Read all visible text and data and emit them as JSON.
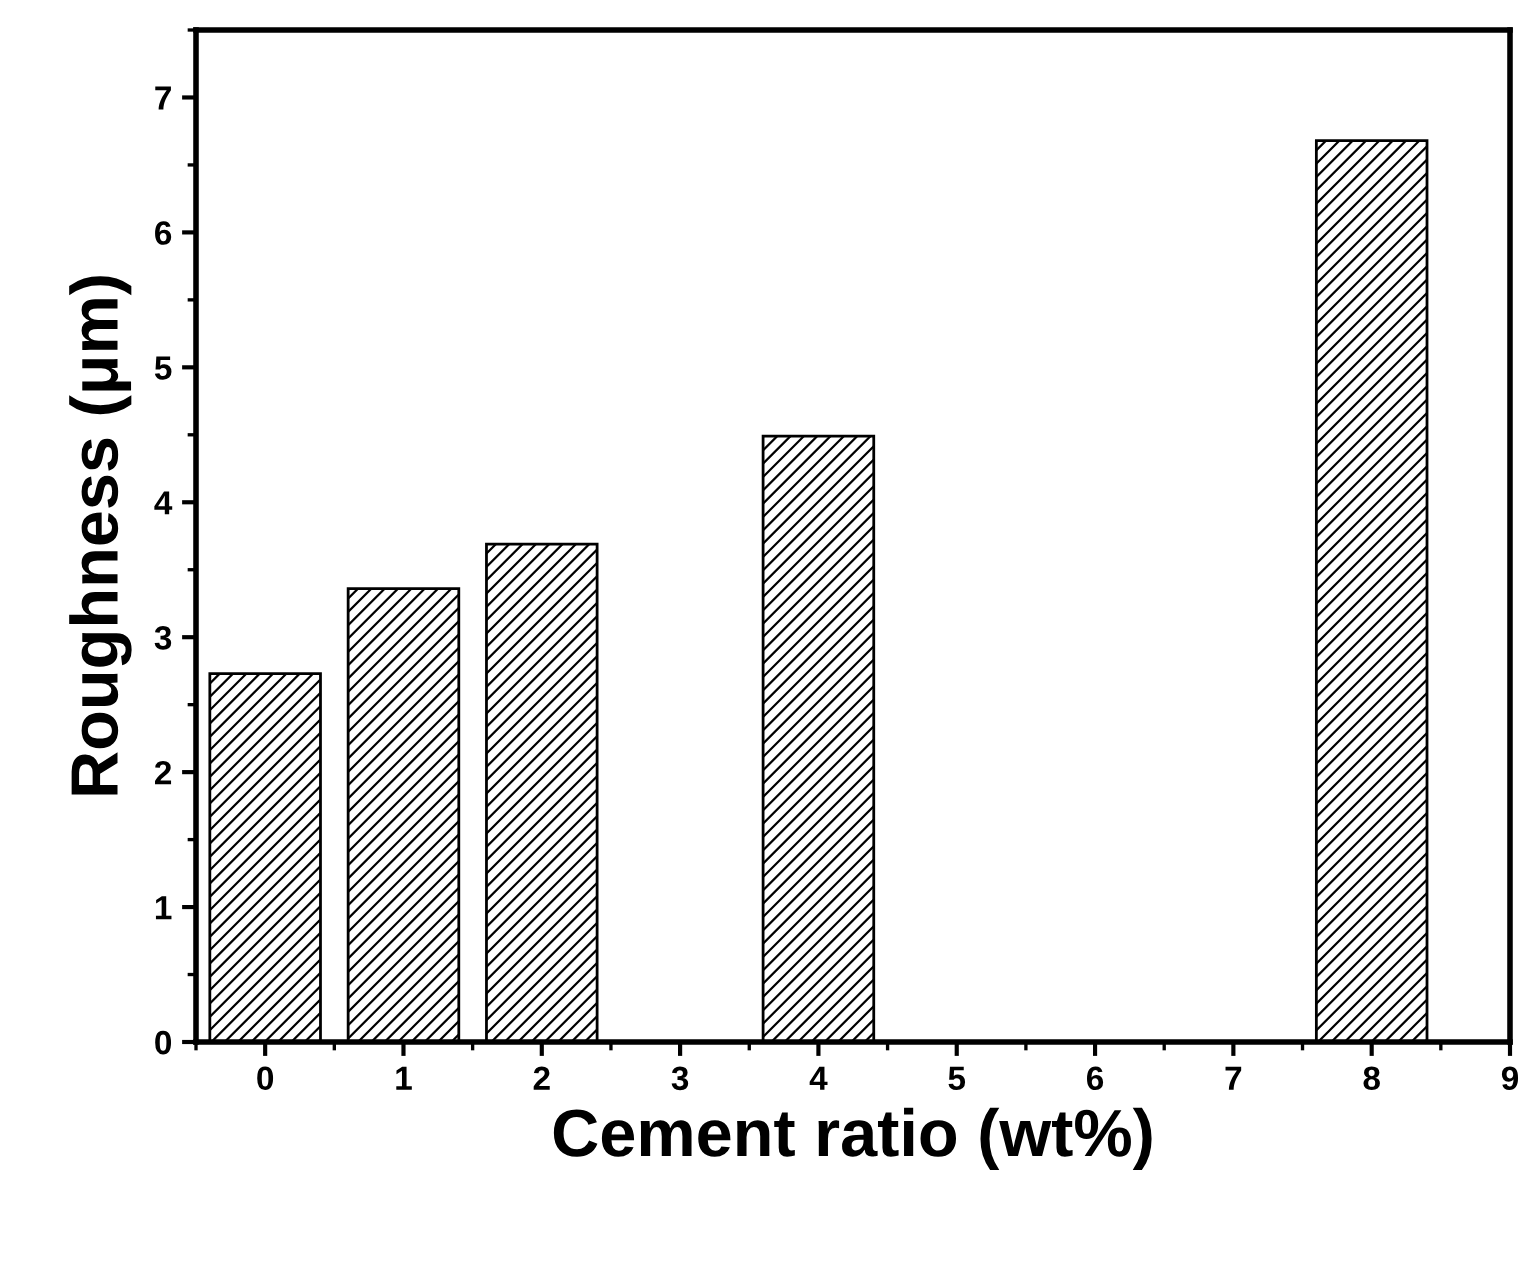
{
  "chart_data": {
    "type": "bar",
    "xlabel": "Cement ratio (wt%)",
    "ylabel": "Roughness (μm)",
    "x": [
      0,
      1,
      2,
      4,
      8
    ],
    "values": [
      2.73,
      3.36,
      3.69,
      4.49,
      6.68
    ],
    "color": "#000000",
    "xlim": [
      -0.5,
      9
    ],
    "xticks": [
      0,
      1,
      2,
      3,
      4,
      5,
      6,
      7,
      8,
      9
    ],
    "ylim": [
      0,
      7.5
    ],
    "yticks": [
      0,
      1,
      2,
      3,
      4,
      5,
      6,
      7
    ],
    "grid": false
  }
}
